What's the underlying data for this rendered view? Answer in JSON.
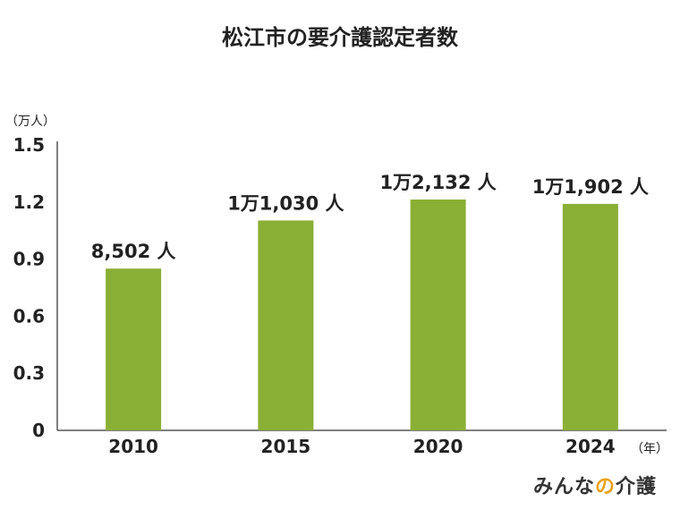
{
  "colors": {
    "bar": "#8aaf35",
    "axis": "#555555",
    "text": "#222222"
  },
  "chart_data": {
    "type": "bar",
    "title": "松江市の要介護認定者数",
    "y_unit": "（万人）",
    "x_unit": "（年）",
    "categories": [
      "2010",
      "2015",
      "2020",
      "2024"
    ],
    "values": [
      0.8502,
      1.103,
      1.2132,
      1.1902
    ],
    "data_labels": [
      "8,502 人",
      "1万1,030 人",
      "1万2,132 人",
      "1万1,902 人"
    ],
    "ylim": [
      0,
      1.5
    ],
    "yticks": [
      "0",
      "0.3",
      "0.6",
      "0.9",
      "1.2",
      "1.5"
    ],
    "grid": false,
    "legend": "none"
  },
  "logo": {
    "part1": "みんな",
    "part2": "の",
    "part3": "介護"
  }
}
